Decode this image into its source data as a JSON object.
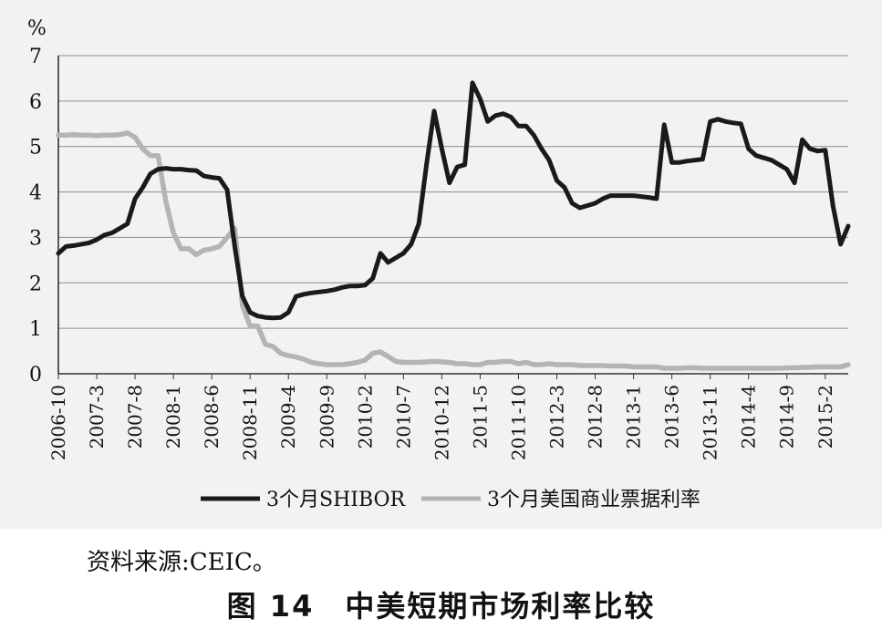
{
  "chart_data": {
    "type": "line",
    "title": "",
    "xlabel": "",
    "ylabel": "%",
    "ylim": [
      0,
      7
    ],
    "yticks": [
      "0",
      "1",
      "2",
      "3",
      "4",
      "5",
      "6",
      "7"
    ],
    "grid": "horizontal",
    "legend_position": "bottom",
    "x_tick_labels": [
      "2006-10",
      "2007-3",
      "2007-8",
      "2008-1",
      "2008-6",
      "2008-11",
      "2009-4",
      "2009-9",
      "2010-2",
      "2010-7",
      "2010-12",
      "2011-5",
      "2011-10",
      "2012-3",
      "2012-8",
      "2013-1",
      "2013-6",
      "2013-11",
      "2014-4",
      "2014-9",
      "2015-2"
    ],
    "x_start": "2006-10",
    "series": [
      {
        "name": "3个月SHIBOR",
        "color": "#1a1a1a",
        "values": [
          2.65,
          2.8,
          2.82,
          2.85,
          2.88,
          2.95,
          3.05,
          3.1,
          3.2,
          3.3,
          3.85,
          4.1,
          4.4,
          4.5,
          4.52,
          4.5,
          4.5,
          4.48,
          4.47,
          4.35,
          4.32,
          4.3,
          4.05,
          2.8,
          1.7,
          1.35,
          1.27,
          1.24,
          1.23,
          1.24,
          1.35,
          1.7,
          1.75,
          1.78,
          1.8,
          1.82,
          1.85,
          1.9,
          1.93,
          1.93,
          1.95,
          2.1,
          2.65,
          2.45,
          2.55,
          2.65,
          2.85,
          3.3,
          4.6,
          5.78,
          4.95,
          4.2,
          4.55,
          4.6,
          6.4,
          6.05,
          5.55,
          5.68,
          5.72,
          5.65,
          5.45,
          5.45,
          5.25,
          4.95,
          4.7,
          4.25,
          4.1,
          3.75,
          3.65,
          3.7,
          3.75,
          3.85,
          3.92,
          3.92,
          3.92,
          3.92,
          3.9,
          3.88,
          3.85,
          5.48,
          4.65,
          4.65,
          4.68,
          4.7,
          4.72,
          5.55,
          5.6,
          5.55,
          5.52,
          5.5,
          4.95,
          4.8,
          4.75,
          4.7,
          4.6,
          4.5,
          4.2,
          5.15,
          4.95,
          4.9,
          4.92,
          3.7,
          2.85,
          3.25
        ]
      },
      {
        "name": "3个月美国商业票据利率",
        "color": "#b4b4b4",
        "values": [
          5.25,
          5.25,
          5.26,
          5.25,
          5.25,
          5.24,
          5.25,
          5.25,
          5.26,
          5.3,
          5.2,
          4.95,
          4.8,
          4.8,
          3.8,
          3.1,
          2.75,
          2.75,
          2.62,
          2.72,
          2.75,
          2.8,
          3.0,
          3.2,
          1.5,
          1.05,
          1.05,
          0.65,
          0.6,
          0.45,
          0.4,
          0.37,
          0.32,
          0.25,
          0.22,
          0.2,
          0.2,
          0.2,
          0.22,
          0.25,
          0.3,
          0.45,
          0.48,
          0.38,
          0.27,
          0.25,
          0.25,
          0.25,
          0.26,
          0.27,
          0.26,
          0.25,
          0.22,
          0.22,
          0.2,
          0.2,
          0.25,
          0.25,
          0.27,
          0.27,
          0.22,
          0.25,
          0.2,
          0.2,
          0.22,
          0.2,
          0.2,
          0.2,
          0.18,
          0.18,
          0.18,
          0.18,
          0.17,
          0.17,
          0.17,
          0.15,
          0.15,
          0.15,
          0.15,
          0.12,
          0.12,
          0.12,
          0.13,
          0.13,
          0.12,
          0.12,
          0.12,
          0.12,
          0.12,
          0.12,
          0.12,
          0.12,
          0.12,
          0.12,
          0.12,
          0.13,
          0.13,
          0.14,
          0.14,
          0.15,
          0.15,
          0.15,
          0.15,
          0.2
        ]
      }
    ]
  },
  "source_note": "资料来源:CEIC。",
  "caption": "图 14　中美短期市场利率比较"
}
